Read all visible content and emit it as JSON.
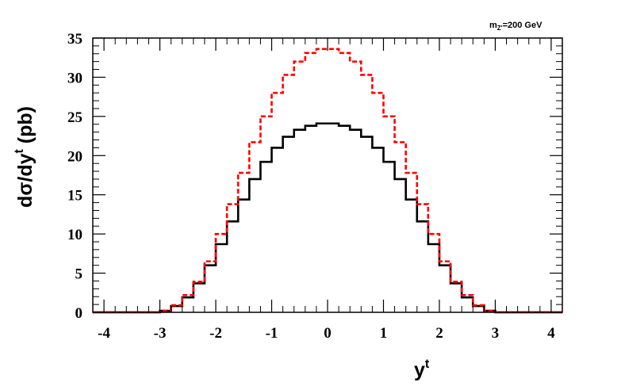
{
  "chart_data": {
    "type": "line",
    "style": "step-histogram",
    "annotation": {
      "main": "m",
      "sub": "Z'",
      "rest": "=200 GeV"
    },
    "xlabel": {
      "main": "y",
      "sup": "t"
    },
    "ylabel": {
      "pre": "dσ/dy",
      "sup": "t",
      "post": " (pb)"
    },
    "xlim": [
      -4.2,
      4.2
    ],
    "ylim": [
      0,
      35
    ],
    "x_ticks": [
      -4,
      -3,
      -2,
      -1,
      0,
      1,
      2,
      3,
      4
    ],
    "x_tick_labels": [
      "-4",
      "-3",
      "-2",
      "-1",
      "0",
      "1",
      "2",
      "3",
      "4"
    ],
    "y_ticks": [
      0,
      5,
      10,
      15,
      20,
      25,
      30,
      35
    ],
    "y_tick_labels": [
      "0",
      "5",
      "10",
      "15",
      "20",
      "25",
      "30",
      "35"
    ],
    "bin_edges": [
      -4.2,
      -4.0,
      -3.8,
      -3.6,
      -3.4,
      -3.2,
      -3.0,
      -2.8,
      -2.6,
      -2.4,
      -2.2,
      -2.0,
      -1.8,
      -1.6,
      -1.4,
      -1.2,
      -1.0,
      -0.8,
      -0.6,
      -0.4,
      -0.2,
      0.0,
      0.2,
      0.4,
      0.6,
      0.8,
      1.0,
      1.2,
      1.4,
      1.6,
      1.8,
      2.0,
      2.2,
      2.4,
      2.6,
      2.8,
      3.0,
      3.2,
      3.4,
      3.6,
      3.8,
      4.0,
      4.2
    ],
    "series": [
      {
        "color": "#000000",
        "dash": "solid",
        "values": [
          0,
          0,
          0,
          0,
          0,
          0,
          0.2,
          0.8,
          1.9,
          3.7,
          6.0,
          8.7,
          11.6,
          14.4,
          17.0,
          19.2,
          21.0,
          22.4,
          23.3,
          23.8,
          24.1,
          24.1,
          23.8,
          23.3,
          22.4,
          21.0,
          19.2,
          17.0,
          14.4,
          11.6,
          8.7,
          6.0,
          3.7,
          1.9,
          0.8,
          0.2,
          0,
          0,
          0,
          0,
          0,
          0
        ]
      },
      {
        "color": "#ff0000",
        "dash": "dashed",
        "values": [
          0,
          0,
          0,
          0,
          0,
          0,
          0.2,
          0.9,
          2.2,
          3.9,
          6.5,
          10.0,
          13.8,
          17.8,
          21.7,
          25.0,
          28.0,
          30.3,
          32.0,
          33.1,
          33.6,
          33.6,
          33.1,
          32.0,
          30.3,
          28.0,
          25.0,
          21.7,
          17.8,
          13.8,
          10.0,
          6.5,
          3.9,
          2.2,
          0.9,
          0.2,
          0,
          0,
          0,
          0,
          0,
          0
        ]
      }
    ],
    "grid": false,
    "legend": "none"
  }
}
